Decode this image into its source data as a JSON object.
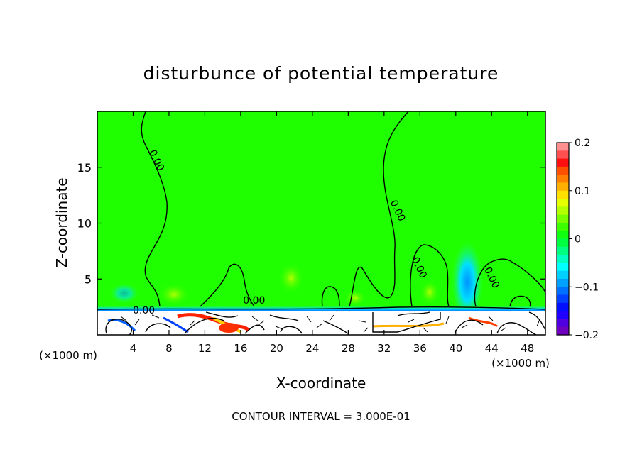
{
  "chart_data": {
    "type": "heatmap",
    "title": "disturbunce of potential temperature",
    "xlabel": "X-coordinate",
    "ylabel": "Z-coordinate",
    "x_unit_left": "(×1000 m)",
    "x_unit_right": "(×1000 m)",
    "xlim": [
      0,
      50
    ],
    "ylim": [
      0,
      20
    ],
    "x_ticks": [
      4,
      8,
      12,
      16,
      20,
      24,
      28,
      32,
      36,
      40,
      44,
      48
    ],
    "x_tick_labels": [
      "4",
      "8",
      "12",
      "16",
      "20",
      "24",
      "28",
      "32",
      "36",
      "40",
      "44",
      "48"
    ],
    "y_ticks": [
      5,
      10,
      15
    ],
    "y_tick_labels": [
      "5",
      "10",
      "15"
    ],
    "colorbar": {
      "min": -0.2,
      "max": 0.2,
      "ticks": [
        0.2,
        0.1,
        0,
        -0.1,
        -0.2
      ],
      "tick_labels": [
        "0.2",
        "0.1",
        "0",
        "−0.1",
        "−0.2"
      ],
      "colors": [
        "#ff9090",
        "#ff5050",
        "#ff1010",
        "#ff5000",
        "#ff8000",
        "#ffb000",
        "#ffe000",
        "#e6ff00",
        "#b4ff00",
        "#78ff00",
        "#3cff00",
        "#10ff10",
        "#00ff40",
        "#00ff80",
        "#00ffc0",
        "#00ffff",
        "#00d0ff",
        "#00a0ff",
        "#0070ff",
        "#0040ff",
        "#0010ff",
        "#2000ff",
        "#5000e0",
        "#7000c0"
      ]
    },
    "contour_labels": [
      {
        "x": 6.3,
        "z": 15.5,
        "text": "0.00"
      },
      {
        "x": 33.2,
        "z": 11.0,
        "text": "0.00"
      },
      {
        "x": 35.6,
        "z": 5.9,
        "text": "0.00"
      },
      {
        "x": 43.7,
        "z": 5.0,
        "text": "0.00"
      },
      {
        "x": 17.5,
        "z": 2.8,
        "text": "0.00"
      },
      {
        "x": 5.2,
        "z": 1.9,
        "text": "0.00"
      }
    ],
    "background_value": 0.0,
    "mixed_layer_top_z": 2.3,
    "footer": "CONTOUR INTERVAL = 3.000E-01"
  }
}
